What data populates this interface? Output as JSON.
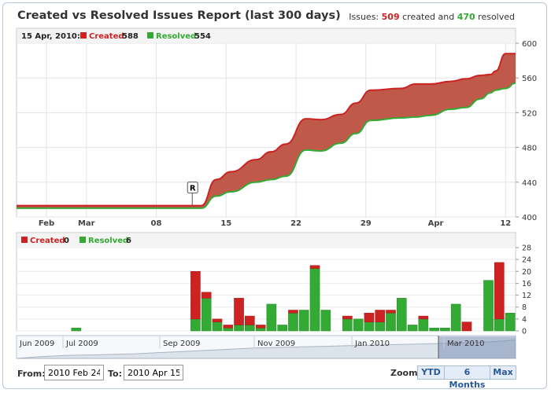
{
  "header": {
    "title": "Created vs Resolved Issues Report (last 300 days)",
    "summary_prefix": "Issues:",
    "created_count": "509",
    "created_word": "created and",
    "resolved_count": "470",
    "resolved_word": "resolved"
  },
  "colors": {
    "created": "#cc2222",
    "resolved": "#33aa33",
    "band_fill": "#bf5a4a",
    "nav_series": "#7a8fb4"
  },
  "chart_data": [
    {
      "type": "area",
      "name": "cumulative",
      "hover_date": "15 Apr, 2010:",
      "legend": [
        {
          "name": "Created",
          "value": 588
        },
        {
          "name": "Resolved",
          "value": 554
        }
      ],
      "x_tick_labels": [
        "Feb",
        "Mar",
        "08",
        "15",
        "22",
        "29",
        "Apr",
        "12"
      ],
      "y_ticks": [
        400,
        440,
        480,
        520,
        560,
        600
      ],
      "ylim": [
        400,
        600
      ],
      "annotation": "R",
      "series": [
        {
          "name": "Created",
          "color": "#cc2222",
          "x": [
            24,
            14,
            15,
            17,
            19,
            22,
            24,
            26,
            29,
            31,
            34,
            36,
            38,
            42,
            44,
            46,
            49,
            51,
            54,
            56,
            59,
            61,
            63
          ],
          "values": [
            413,
            413,
            413,
            443,
            452,
            466,
            475,
            484,
            513,
            512,
            518,
            531,
            546,
            548,
            553,
            553,
            556,
            559,
            563,
            564,
            568,
            588,
            588
          ]
        },
        {
          "name": "Resolved",
          "color": "#33aa33",
          "x": [
            24,
            14,
            15,
            17,
            19,
            22,
            24,
            26,
            29,
            31,
            34,
            36,
            38,
            42,
            44,
            46,
            49,
            51,
            54,
            56,
            59,
            61,
            63
          ],
          "values": [
            410,
            410,
            410,
            424,
            429,
            440,
            443,
            447,
            477,
            476,
            485,
            496,
            511,
            514,
            515,
            517,
            524,
            526,
            536,
            543,
            546,
            548,
            554
          ]
        }
      ]
    },
    {
      "type": "bar",
      "name": "weekly",
      "legend": [
        {
          "name": "Created",
          "value": 0
        },
        {
          "name": "Resolved",
          "value": 6
        }
      ],
      "y_ticks": [
        0,
        4,
        8,
        12,
        16,
        20,
        24,
        28
      ],
      "ylim": [
        0,
        28
      ],
      "series": [
        {
          "name": "Resolved",
          "color": "#33aa33",
          "values": [
            0,
            0,
            0,
            0,
            0,
            1,
            0,
            0,
            0,
            0,
            0,
            0,
            0,
            0,
            0,
            0,
            4,
            11,
            3,
            1,
            2,
            2,
            1,
            9,
            2,
            6,
            7,
            21,
            7,
            0,
            4,
            4,
            3,
            3,
            6,
            11,
            2,
            4,
            1,
            1,
            9,
            0,
            0,
            17,
            4,
            6
          ]
        },
        {
          "name": "Created",
          "color": "#cc2222",
          "values": [
            0,
            0,
            0,
            0,
            0,
            0,
            0,
            0,
            0,
            0,
            0,
            0,
            0,
            0,
            0,
            0,
            16,
            2,
            1,
            1,
            9,
            3,
            1,
            0,
            0,
            1,
            0,
            1,
            0,
            0,
            1,
            0,
            3,
            4,
            1,
            0,
            0,
            1,
            0,
            0,
            0,
            3,
            0,
            0,
            19,
            0
          ]
        }
      ]
    },
    {
      "type": "area",
      "name": "navigator",
      "x_tick_labels": [
        "Jun 2009",
        "Jul 2009",
        "Sep 2009",
        "Nov 2009",
        "Jan 2010",
        "Mar 2010"
      ],
      "values": [
        0,
        3,
        5,
        6,
        7,
        8,
        10,
        12,
        14,
        16,
        18,
        19,
        20,
        21,
        22,
        23,
        24,
        25,
        26,
        27,
        29,
        32
      ]
    }
  ],
  "controls": {
    "from_label": "From:",
    "from_value": "2010 Feb 24",
    "to_label": "To:",
    "to_value": "2010 Apr 15",
    "zoom_label": "Zoom:",
    "zoom_options": [
      "YTD",
      "6 Months",
      "Max"
    ]
  }
}
